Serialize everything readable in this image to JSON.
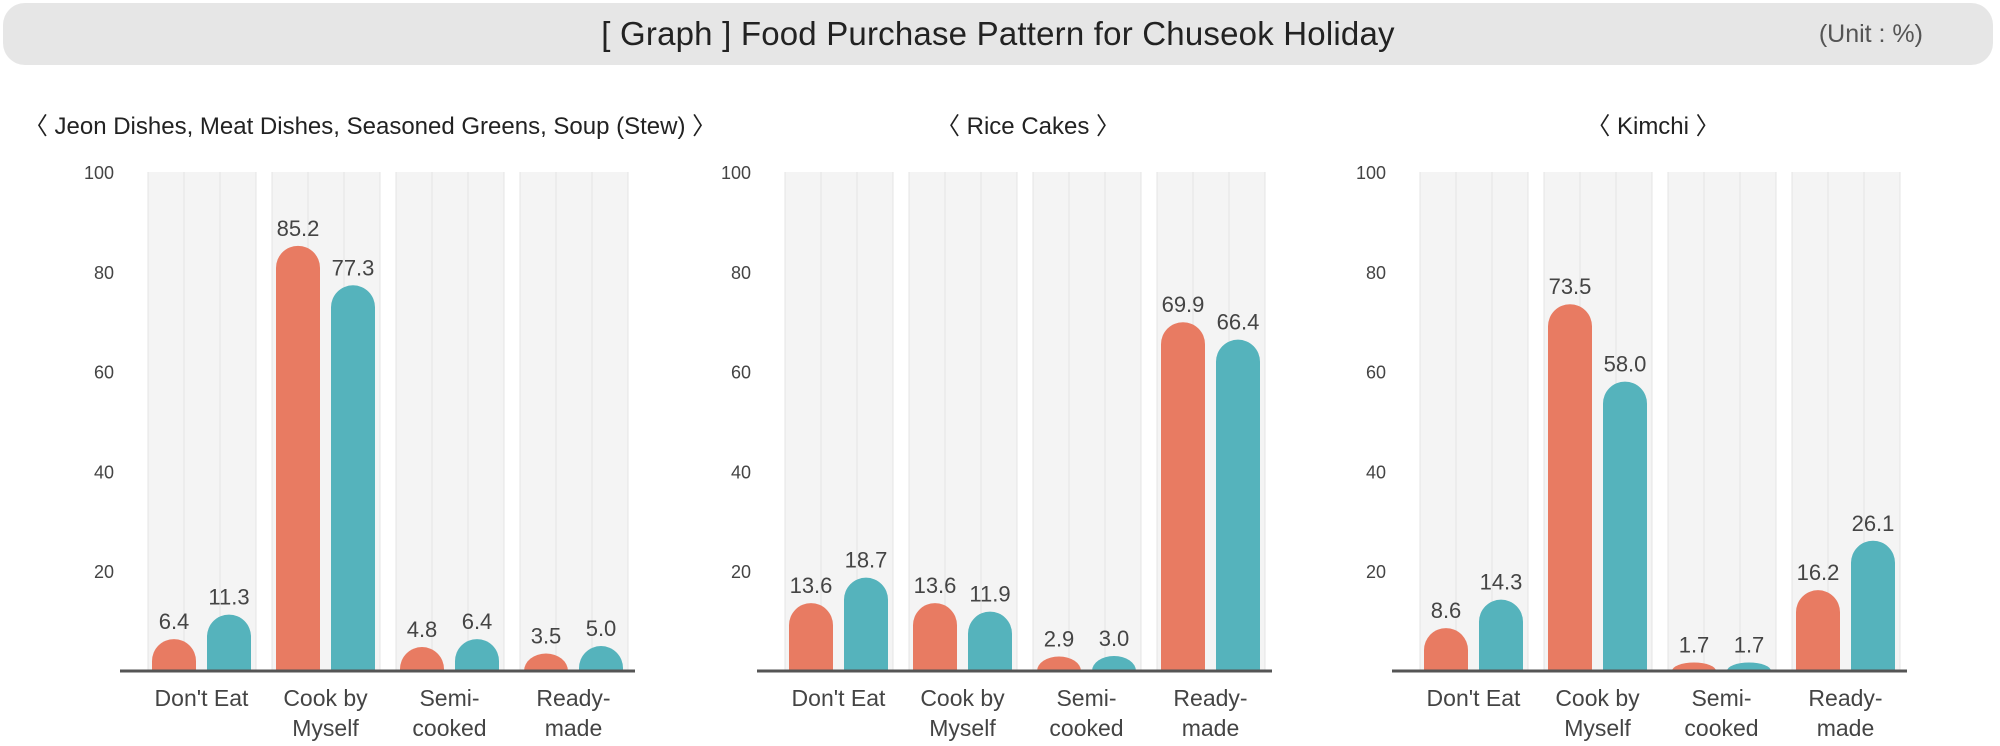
{
  "header": {
    "title": "[ Graph ]  Food Purchase Pattern for Chuseok Holiday",
    "unit": "(Unit : %)"
  },
  "colors": {
    "series_a": "#E87B62",
    "series_b": "#55B3BC",
    "axis": "#555555",
    "grid_band": "#F4F4F4",
    "grid_line": "#E4E4E4"
  },
  "chart_data": [
    {
      "type": "bar",
      "title": "〈 Jeon Dishes, Meat Dishes, Seasoned Greens, Soup (Stew) 〉",
      "categories": [
        "Don't Eat",
        "Cook by Myself",
        "Semi-cooked",
        "Ready-made"
      ],
      "category_lines": [
        [
          "Don't Eat"
        ],
        [
          "Cook by",
          "Myself"
        ],
        [
          "Semi-",
          "cooked"
        ],
        [
          "Ready-",
          "made"
        ]
      ],
      "series": [
        {
          "values": [
            6.4,
            85.2,
            4.8,
            3.5
          ]
        },
        {
          "values": [
            11.3,
            77.3,
            6.4,
            5.0
          ]
        }
      ],
      "ylim": [
        0,
        100
      ],
      "yticks": [
        20,
        40,
        60,
        80,
        100
      ]
    },
    {
      "type": "bar",
      "title": "〈 Rice Cakes 〉",
      "categories": [
        "Don't Eat",
        "Cook by Myself",
        "Semi-cooked",
        "Ready-made"
      ],
      "category_lines": [
        [
          "Don't Eat"
        ],
        [
          "Cook by",
          "Myself"
        ],
        [
          "Semi-",
          "cooked"
        ],
        [
          "Ready-",
          "made"
        ]
      ],
      "series": [
        {
          "values": [
            13.6,
            13.6,
            2.9,
            69.9
          ]
        },
        {
          "values": [
            18.7,
            11.9,
            3.0,
            66.4
          ]
        }
      ],
      "ylim": [
        0,
        100
      ],
      "yticks": [
        20,
        40,
        60,
        80,
        100
      ]
    },
    {
      "type": "bar",
      "title": "〈 Kimchi 〉",
      "categories": [
        "Don't Eat",
        "Cook by Myself",
        "Semi-cooked",
        "Ready-made"
      ],
      "category_lines": [
        [
          "Don't Eat"
        ],
        [
          "Cook by",
          "Myself"
        ],
        [
          "Semi-",
          "cooked"
        ],
        [
          "Ready-",
          "made"
        ]
      ],
      "series": [
        {
          "values": [
            8.6,
            73.5,
            1.7,
            16.2
          ]
        },
        {
          "values": [
            14.3,
            58.0,
            1.7,
            26.1
          ]
        }
      ],
      "ylim": [
        0,
        100
      ],
      "yticks": [
        20,
        40,
        60,
        80,
        100
      ]
    }
  ]
}
